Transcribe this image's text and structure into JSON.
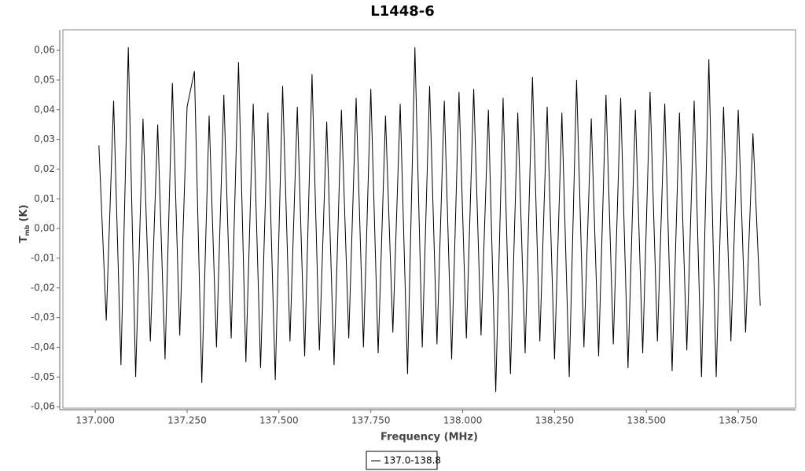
{
  "chart_data": {
    "type": "line",
    "title": "L1448-6",
    "x_label": "Frequency (MHz)",
    "y_label": {
      "main": "T",
      "sub": "mb",
      "unit": "(K)"
    },
    "x": [
      137.01,
      137.03,
      137.05,
      137.07,
      137.09,
      137.11,
      137.13,
      137.15,
      137.17,
      137.19,
      137.21,
      137.23,
      137.25,
      137.27,
      137.29,
      137.31,
      137.33,
      137.35,
      137.37,
      137.39,
      137.41,
      137.43,
      137.45,
      137.47,
      137.49,
      137.51,
      137.53,
      137.55,
      137.57,
      137.59,
      137.61,
      137.63,
      137.65,
      137.67,
      137.69,
      137.71,
      137.73,
      137.75,
      137.77,
      137.79,
      137.81,
      137.83,
      137.85,
      137.87,
      137.89,
      137.91,
      137.93,
      137.95,
      137.97,
      137.99,
      138.01,
      138.03,
      138.05,
      138.07,
      138.09,
      138.11,
      138.13,
      138.15,
      138.17,
      138.19,
      138.21,
      138.23,
      138.25,
      138.27,
      138.29,
      138.31,
      138.33,
      138.35,
      138.37,
      138.39,
      138.41,
      138.43,
      138.45,
      138.47,
      138.49,
      138.51,
      138.53,
      138.55,
      138.57,
      138.59,
      138.61,
      138.63,
      138.65,
      138.67,
      138.69,
      138.71,
      138.73,
      138.75,
      138.77,
      138.79,
      138.81
    ],
    "series": [
      {
        "name": "137.0-138.8",
        "color": "#000000",
        "values": [
          0.028,
          -0.031,
          0.043,
          -0.046,
          0.061,
          -0.05,
          0.037,
          -0.038,
          0.035,
          -0.044,
          0.049,
          -0.036,
          0.041,
          0.053,
          -0.052,
          0.038,
          -0.04,
          0.045,
          -0.037,
          0.056,
          -0.045,
          0.042,
          -0.047,
          0.039,
          -0.051,
          0.048,
          -0.038,
          0.041,
          -0.043,
          0.052,
          -0.041,
          0.036,
          -0.046,
          0.04,
          -0.037,
          0.044,
          -0.04,
          0.047,
          -0.042,
          0.038,
          -0.035,
          0.042,
          -0.049,
          0.061,
          -0.04,
          0.048,
          -0.039,
          0.043,
          -0.044,
          0.046,
          -0.037,
          0.047,
          -0.036,
          0.04,
          -0.055,
          0.044,
          -0.049,
          0.039,
          -0.042,
          0.051,
          -0.038,
          0.041,
          -0.044,
          0.039,
          -0.05,
          0.05,
          -0.04,
          0.037,
          -0.043,
          0.045,
          -0.039,
          0.044,
          -0.047,
          0.04,
          -0.042,
          0.046,
          -0.038,
          0.042,
          -0.048,
          0.039,
          -0.041,
          0.043,
          -0.05,
          0.057,
          -0.05,
          0.041,
          -0.038,
          0.04,
          -0.035,
          0.032,
          -0.026
        ]
      }
    ],
    "xlim": [
      136.912,
      138.906
    ],
    "xticks": [
      {
        "value": 137,
        "label": "137.000"
      },
      {
        "value": 137.25,
        "label": "137.250"
      },
      {
        "value": 137.5,
        "label": "137.500"
      },
      {
        "value": 137.75,
        "label": "137.750"
      },
      {
        "value": 138,
        "label": "138.000"
      },
      {
        "value": 138.25,
        "label": "138.250"
      },
      {
        "value": 138.5,
        "label": "138.500"
      },
      {
        "value": 138.75,
        "label": "138.750"
      }
    ],
    "ylim": [
      -0.0605,
      0.0669
    ],
    "yticks": [
      {
        "value": -0.06,
        "label": "-0,06"
      },
      {
        "value": -0.05,
        "label": "-0,05"
      },
      {
        "value": -0.04,
        "label": "-0,04"
      },
      {
        "value": -0.03,
        "label": "-0,03"
      },
      {
        "value": -0.02,
        "label": "-0,02"
      },
      {
        "value": -0.01,
        "label": "-0,01"
      },
      {
        "value": 0,
        "label": "0,00"
      },
      {
        "value": 0.01,
        "label": "0,01"
      },
      {
        "value": 0.02,
        "label": "0,02"
      },
      {
        "value": 0.03,
        "label": "0,03"
      },
      {
        "value": 0.04,
        "label": "0,04"
      },
      {
        "value": 0.05,
        "label": "0,05"
      },
      {
        "value": 0.06,
        "label": "0,06"
      }
    ],
    "grid": false,
    "legend": "bottom"
  }
}
